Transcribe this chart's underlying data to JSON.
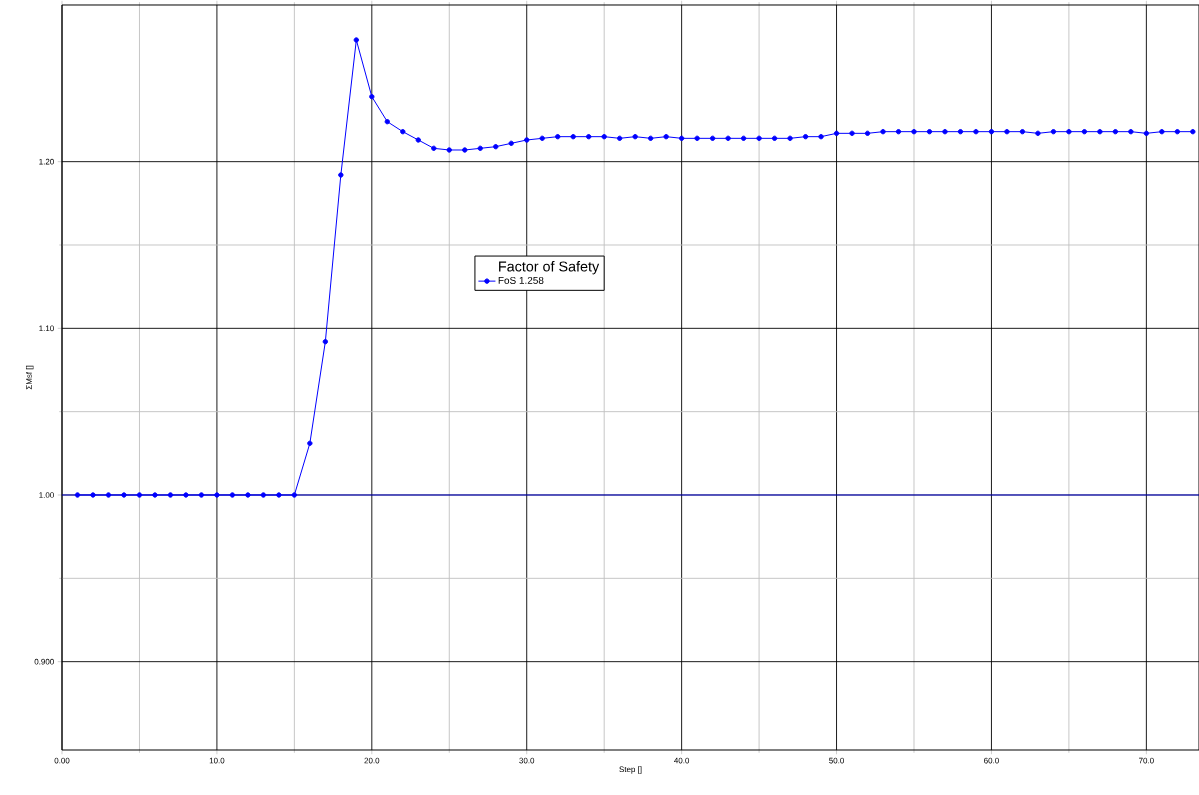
{
  "chart_data": {
    "type": "line",
    "xlabel": "Step []",
    "ylabel": "ΣMsf []",
    "legend_title": "Factor of Safety",
    "x": [
      1,
      2,
      3,
      4,
      5,
      6,
      7,
      8,
      9,
      10,
      11,
      12,
      13,
      14,
      15,
      16,
      17,
      18,
      19,
      20,
      21,
      22,
      23,
      24,
      25,
      26,
      27,
      28,
      29,
      30,
      31,
      32,
      33,
      34,
      35,
      36,
      37,
      38,
      39,
      40,
      41,
      42,
      43,
      44,
      45,
      46,
      47,
      48,
      49,
      50,
      51,
      52,
      53,
      54,
      55,
      56,
      57,
      58,
      59,
      60,
      61,
      62,
      63,
      64,
      65,
      66,
      67,
      68,
      69,
      70,
      71,
      72,
      73
    ],
    "series": [
      {
        "name": "FoS 1.258",
        "color": "#0000ff",
        "values": [
          1.0,
          1.0,
          1.0,
          1.0,
          1.0,
          1.0,
          1.0,
          1.0,
          1.0,
          1.0,
          1.0,
          1.0,
          1.0,
          1.0,
          1.0,
          1.031,
          1.092,
          1.192,
          1.273,
          1.239,
          1.224,
          1.218,
          1.213,
          1.208,
          1.207,
          1.207,
          1.208,
          1.209,
          1.211,
          1.213,
          1.214,
          1.215,
          1.215,
          1.215,
          1.215,
          1.214,
          1.215,
          1.214,
          1.215,
          1.214,
          1.214,
          1.214,
          1.214,
          1.214,
          1.214,
          1.214,
          1.214,
          1.215,
          1.215,
          1.217,
          1.217,
          1.217,
          1.218,
          1.218,
          1.218,
          1.218,
          1.218,
          1.218,
          1.218,
          1.218,
          1.218,
          1.218,
          1.217,
          1.218,
          1.218,
          1.218,
          1.218,
          1.218,
          1.218,
          1.217,
          1.218,
          1.218,
          1.218
        ]
      }
    ],
    "ref_lines": [
      {
        "axis": "y",
        "value": 1.0,
        "color": "#0000ff"
      }
    ],
    "xlim": [
      0,
      73.4
    ],
    "ylim": [
      0.847,
      1.294
    ],
    "xticks": [
      {
        "value": 0,
        "label": "0.00"
      },
      {
        "value": 10,
        "label": "10.0"
      },
      {
        "value": 20,
        "label": "20.0"
      },
      {
        "value": 30,
        "label": "30.0"
      },
      {
        "value": 40,
        "label": "40.0"
      },
      {
        "value": 50,
        "label": "50.0"
      },
      {
        "value": 60,
        "label": "60.0"
      },
      {
        "value": 70,
        "label": "70.0"
      }
    ],
    "yticks": [
      {
        "value": 0.9,
        "label": "0.900"
      },
      {
        "value": 1.0,
        "label": "1.00"
      },
      {
        "value": 1.1,
        "label": "1.10"
      },
      {
        "value": 1.2,
        "label": "1.20"
      }
    ],
    "grid": true,
    "legend": "center",
    "marker": "circle",
    "line_style": "solid"
  }
}
